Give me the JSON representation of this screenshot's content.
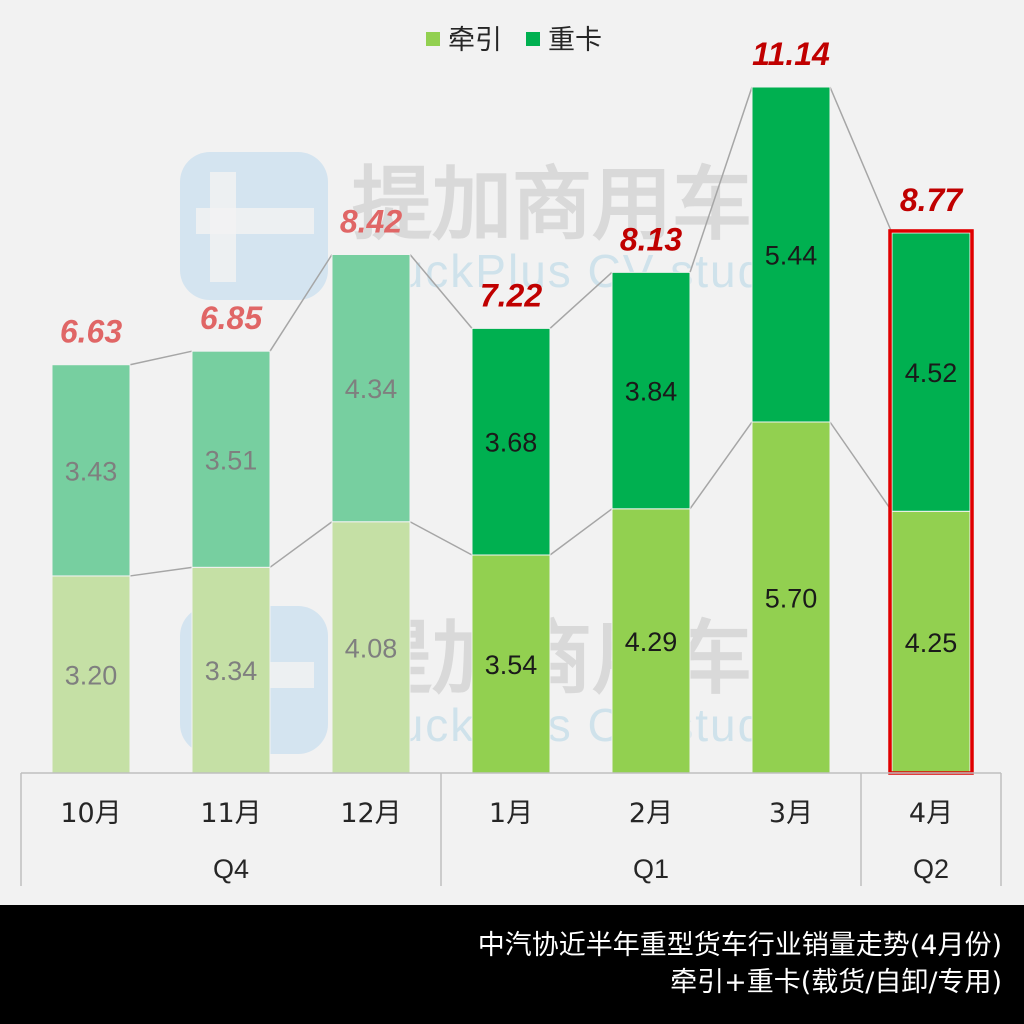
{
  "chart_data": {
    "type": "bar",
    "stacked": true,
    "categories": [
      "10月",
      "11月",
      "12月",
      "1月",
      "2月",
      "3月",
      "4月"
    ],
    "groups": [
      {
        "label": "Q4",
        "categories": [
          "10月",
          "11月",
          "12月"
        ]
      },
      {
        "label": "Q1",
        "categories": [
          "1月",
          "2月",
          "3月"
        ]
      },
      {
        "label": "Q2",
        "categories": [
          "4月"
        ]
      }
    ],
    "series": [
      {
        "name": "牵引",
        "values": [
          3.2,
          3.34,
          4.08,
          3.54,
          4.29,
          5.7,
          4.25
        ],
        "color": "#92d050",
        "faded_color": "#c5e0a5"
      },
      {
        "name": "重卡",
        "values": [
          3.43,
          3.51,
          4.34,
          3.68,
          3.84,
          5.44,
          4.52
        ],
        "color": "#00b050",
        "faded_color": "#77cfa0"
      }
    ],
    "totals": [
      6.63,
      6.85,
      8.42,
      7.22,
      8.13,
      11.14,
      8.77
    ],
    "faded_categories": [
      "10月",
      "11月",
      "12月"
    ],
    "highlighted_category": "4月",
    "highlight_color": "#e00000",
    "total_label_color": "#c00000",
    "faded_total_label_color": "#e06666",
    "legend_position": "top",
    "ylim": [
      0,
      11.14
    ],
    "grid": false
  },
  "watermark": {
    "brand": "提加商用车",
    "tagline": "TruckPlus CV studio"
  },
  "caption": {
    "line1": "中汽协近半年重型货车行业销量走势(4月份)",
    "line2": "牵引+重卡(载货/自卸/专用)"
  }
}
